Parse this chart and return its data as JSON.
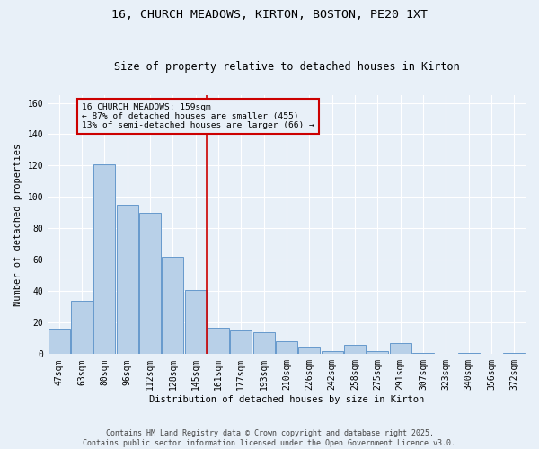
{
  "title_line1": "16, CHURCH MEADOWS, KIRTON, BOSTON, PE20 1XT",
  "title_line2": "Size of property relative to detached houses in Kirton",
  "xlabel": "Distribution of detached houses by size in Kirton",
  "ylabel": "Number of detached properties",
  "categories": [
    "47sqm",
    "63sqm",
    "80sqm",
    "96sqm",
    "112sqm",
    "128sqm",
    "145sqm",
    "161sqm",
    "177sqm",
    "193sqm",
    "210sqm",
    "226sqm",
    "242sqm",
    "258sqm",
    "275sqm",
    "291sqm",
    "307sqm",
    "323sqm",
    "340sqm",
    "356sqm",
    "372sqm"
  ],
  "values": [
    16,
    34,
    121,
    95,
    90,
    62,
    41,
    17,
    15,
    14,
    8,
    5,
    2,
    6,
    2,
    7,
    1,
    0,
    1,
    0,
    1
  ],
  "bar_color": "#b8d0e8",
  "bar_edge_color": "#6699cc",
  "vline_index": 7,
  "vline_color": "#cc0000",
  "annotation_text": "16 CHURCH MEADOWS: 159sqm\n← 87% of detached houses are smaller (455)\n13% of semi-detached houses are larger (66) →",
  "annotation_box_facecolor": "#e8f0f8",
  "annotation_box_edgecolor": "#cc0000",
  "background_color": "#e8f0f8",
  "footer_text": "Contains HM Land Registry data © Crown copyright and database right 2025.\nContains public sector information licensed under the Open Government Licence v3.0.",
  "ylim": [
    0,
    165
  ],
  "yticks": [
    0,
    20,
    40,
    60,
    80,
    100,
    120,
    140,
    160
  ],
  "title_fontsize": 9.5,
  "subtitle_fontsize": 8.5,
  "tick_fontsize": 7,
  "ylabel_fontsize": 7.5,
  "xlabel_fontsize": 7.5
}
